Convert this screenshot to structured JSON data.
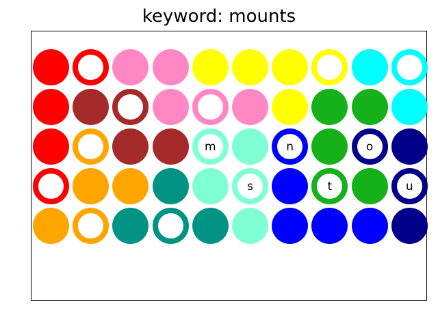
{
  "title": "keyword: mounts",
  "colors": {
    "R": "#ff0000",
    "B": "#a52a2a",
    "P": "#ff88c4",
    "Y": "#ffff00",
    "G": "#15b01a",
    "C": "#00ffff",
    "O": "#ffa500",
    "T": "#009384",
    "A": "#7fffd4",
    "L": "#0000ff",
    "N": "#00008b"
  },
  "grid": [
    [
      {
        "c": "R",
        "t": "filled"
      },
      {
        "c": "R",
        "t": "ring"
      },
      {
        "c": "P",
        "t": "filled"
      },
      {
        "c": "P",
        "t": "filled"
      },
      {
        "c": "Y",
        "t": "filled"
      },
      {
        "c": "Y",
        "t": "filled"
      },
      {
        "c": "Y",
        "t": "filled"
      },
      {
        "c": "Y",
        "t": "ring"
      },
      {
        "c": "C",
        "t": "filled"
      },
      {
        "c": "C",
        "t": "ring"
      }
    ],
    [
      {
        "c": "R",
        "t": "filled"
      },
      {
        "c": "B",
        "t": "filled"
      },
      {
        "c": "B",
        "t": "ring"
      },
      {
        "c": "P",
        "t": "filled"
      },
      {
        "c": "P",
        "t": "ring"
      },
      {
        "c": "P",
        "t": "filled"
      },
      {
        "c": "Y",
        "t": "filled"
      },
      {
        "c": "G",
        "t": "filled"
      },
      {
        "c": "G",
        "t": "filled"
      },
      {
        "c": "C",
        "t": "filled"
      }
    ],
    [
      {
        "c": "R",
        "t": "filled"
      },
      {
        "c": "O",
        "t": "ring"
      },
      {
        "c": "B",
        "t": "filled"
      },
      {
        "c": "B",
        "t": "filled"
      },
      {
        "c": "A",
        "t": "ring",
        "l": "m"
      },
      {
        "c": "A",
        "t": "filled"
      },
      {
        "c": "L",
        "t": "ring",
        "l": "n"
      },
      {
        "c": "G",
        "t": "filled"
      },
      {
        "c": "N",
        "t": "ring",
        "l": "o"
      },
      {
        "c": "N",
        "t": "filled"
      }
    ],
    [
      {
        "c": "R",
        "t": "ring"
      },
      {
        "c": "O",
        "t": "filled"
      },
      {
        "c": "O",
        "t": "filled"
      },
      {
        "c": "T",
        "t": "filled"
      },
      {
        "c": "A",
        "t": "filled"
      },
      {
        "c": "A",
        "t": "ring",
        "l": "s"
      },
      {
        "c": "L",
        "t": "filled"
      },
      {
        "c": "G",
        "t": "ring",
        "l": "t"
      },
      {
        "c": "G",
        "t": "filled"
      },
      {
        "c": "N",
        "t": "ring",
        "l": "u"
      }
    ],
    [
      {
        "c": "O",
        "t": "filled"
      },
      {
        "c": "O",
        "t": "ring"
      },
      {
        "c": "T",
        "t": "filled"
      },
      {
        "c": "T",
        "t": "ring"
      },
      {
        "c": "T",
        "t": "filled"
      },
      {
        "c": "A",
        "t": "filled"
      },
      {
        "c": "L",
        "t": "filled"
      },
      {
        "c": "L",
        "t": "filled"
      },
      {
        "c": "L",
        "t": "filled"
      },
      {
        "c": "N",
        "t": "filled"
      }
    ]
  ]
}
